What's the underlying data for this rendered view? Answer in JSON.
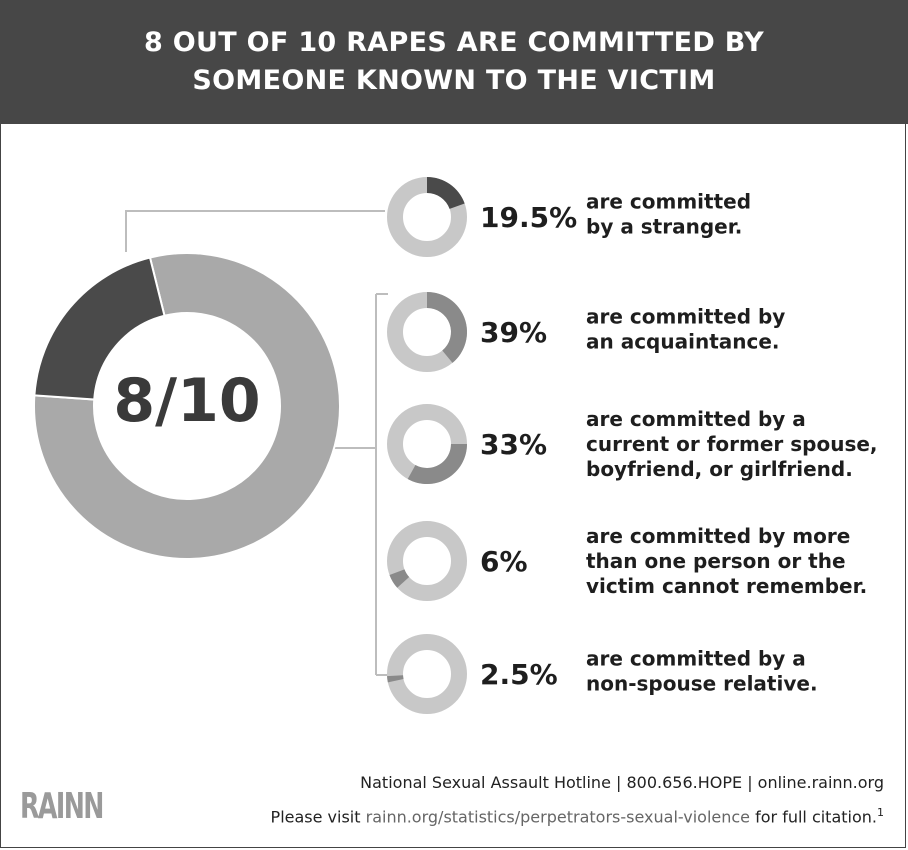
{
  "header": {
    "title_line1": "8 OUT OF 10 RAPES ARE COMMITTED BY",
    "title_line2": "SOMEONE KNOWN TO THE VICTIM"
  },
  "chart_data": [
    {
      "type": "pie",
      "variant": "donut",
      "center_label": "8/10",
      "slices": [
        {
          "label": "known to the victim",
          "value": 80,
          "color": "#a9a9a9"
        },
        {
          "label": "stranger",
          "value": 20,
          "color": "#4a4a4a"
        }
      ]
    },
    {
      "type": "pie",
      "variant": "donut-list",
      "items": [
        {
          "value": 19.5,
          "pct_label": "19.5%",
          "desc": [
            "are committed",
            "by a stranger."
          ],
          "color": "#4a4a4a"
        },
        {
          "value": 39,
          "pct_label": "39%",
          "desc": [
            "are committed by",
            "an acquaintance."
          ],
          "color": "#8a8a8a"
        },
        {
          "value": 33,
          "pct_label": "33%",
          "desc": [
            "are committed by a",
            "current or former spouse,",
            "boyfriend, or girlfriend."
          ],
          "color": "#8a8a8a"
        },
        {
          "value": 6,
          "pct_label": "6%",
          "desc": [
            "are committed by more",
            "than one person or the",
            "victim cannot remember."
          ],
          "color": "#8a8a8a"
        },
        {
          "value": 2.5,
          "pct_label": "2.5%",
          "desc": [
            "are committed by a",
            "non-spouse relative."
          ],
          "color": "#8a8a8a"
        }
      ],
      "track_color": "#c8c8c8"
    }
  ],
  "footer": {
    "line1": "National Sexual Assault Hotline | 800.656.HOPE | online.rainn.org",
    "line2_prefix": "Please visit ",
    "line2_link": "rainn.org/statistics/perpetrators-sexual-violence",
    "line2_suffix": " for full citation.",
    "citation_mark": "1",
    "logo": "RAINN"
  }
}
